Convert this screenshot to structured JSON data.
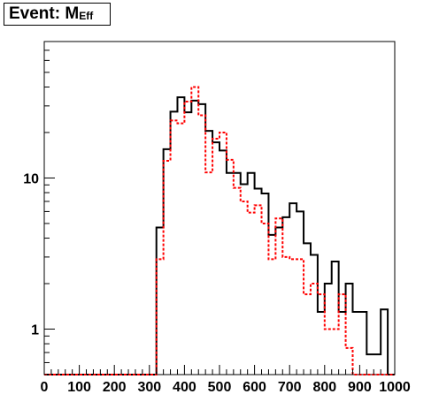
{
  "title": {
    "main": "Event: M",
    "sub": "Eff"
  },
  "colors": {
    "series_1": "#000000",
    "series_2": "#ff0000",
    "frame": "#000000",
    "background": "#ffffff"
  },
  "chart_data": {
    "type": "line",
    "subtype": "step-histogram",
    "title": "Event: M_Eff",
    "xlabel": "",
    "ylabel": "",
    "xlim": [
      0,
      1000
    ],
    "ylim": [
      0.5,
      80
    ],
    "yscale": "log",
    "grid": false,
    "legend": "none",
    "xticks": [
      0,
      100,
      200,
      300,
      400,
      500,
      600,
      700,
      800,
      900,
      1000
    ],
    "xtick_labels": [
      "0",
      "100",
      "200",
      "300",
      "400",
      "500",
      "600",
      "700",
      "800",
      "900",
      "1000"
    ],
    "yticks": [
      1,
      10
    ],
    "ytick_labels": [
      "1",
      "10"
    ],
    "bin_edges": [
      0,
      20,
      40,
      60,
      80,
      100,
      120,
      140,
      160,
      180,
      200,
      220,
      240,
      260,
      280,
      300,
      320,
      340,
      360,
      380,
      400,
      420,
      440,
      460,
      480,
      500,
      520,
      540,
      560,
      580,
      600,
      620,
      640,
      660,
      680,
      700,
      720,
      740,
      760,
      780,
      800,
      820,
      840,
      860,
      880,
      900,
      920,
      940,
      960,
      980,
      1000
    ],
    "series": [
      {
        "style": "solid",
        "color": "#000000",
        "values": [
          0.5,
          0.5,
          0.5,
          0.5,
          0.5,
          0.5,
          0.5,
          0.5,
          0.5,
          0.5,
          0.5,
          0.5,
          0.5,
          0.5,
          0.5,
          0.5,
          4.7,
          15.5,
          27.5,
          34.2,
          27.2,
          32.5,
          30.8,
          20.5,
          17.2,
          15.2,
          10.8,
          10.8,
          9.1,
          10.8,
          8.5,
          7.9,
          4.2,
          4.7,
          5.5,
          6.8,
          6.0,
          3.7,
          3.1,
          1.3,
          2.0,
          2.8,
          1.3,
          2.0,
          1.3,
          1.3,
          0.68,
          0.68,
          1.35,
          0.5
        ]
      },
      {
        "style": "dashed",
        "color": "#ff0000",
        "values": [
          0.5,
          0.5,
          0.5,
          0.5,
          0.5,
          0.5,
          0.5,
          0.5,
          0.5,
          0.5,
          0.5,
          0.5,
          0.5,
          0.5,
          0.5,
          0.5,
          2.9,
          13.0,
          24.0,
          23.0,
          32.0,
          40.0,
          26.0,
          10.9,
          18.2,
          20.0,
          13.2,
          8.6,
          7.0,
          5.9,
          6.6,
          5.0,
          2.9,
          5.4,
          3.0,
          2.9,
          2.9,
          1.7,
          2.0,
          1.7,
          1.0,
          1.0,
          1.7,
          0.75,
          0.5,
          0.5,
          0.5,
          0.5,
          0.5,
          0.5
        ]
      }
    ]
  }
}
